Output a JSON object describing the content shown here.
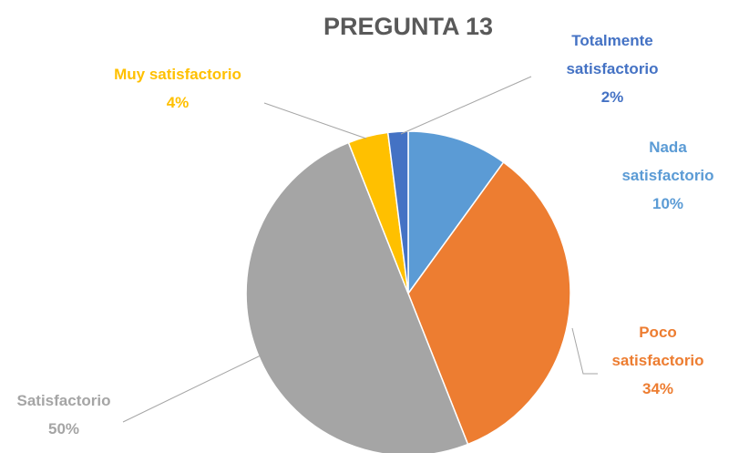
{
  "chart_data": {
    "type": "pie",
    "title": "PREGUNTA 13",
    "categories": [
      "Nada satisfactorio",
      "Poco satisfactorio",
      "Satisfactorio",
      "Muy satisfactorio",
      "Totalmente satisfactorio"
    ],
    "values": [
      10,
      34,
      50,
      4,
      2
    ],
    "value_labels": [
      "10%",
      "34%",
      "50%",
      "4%",
      "2%"
    ],
    "colors": [
      "#5b9bd5",
      "#ed7d31",
      "#a5a5a5",
      "#ffc000",
      "#4472c4"
    ]
  }
}
